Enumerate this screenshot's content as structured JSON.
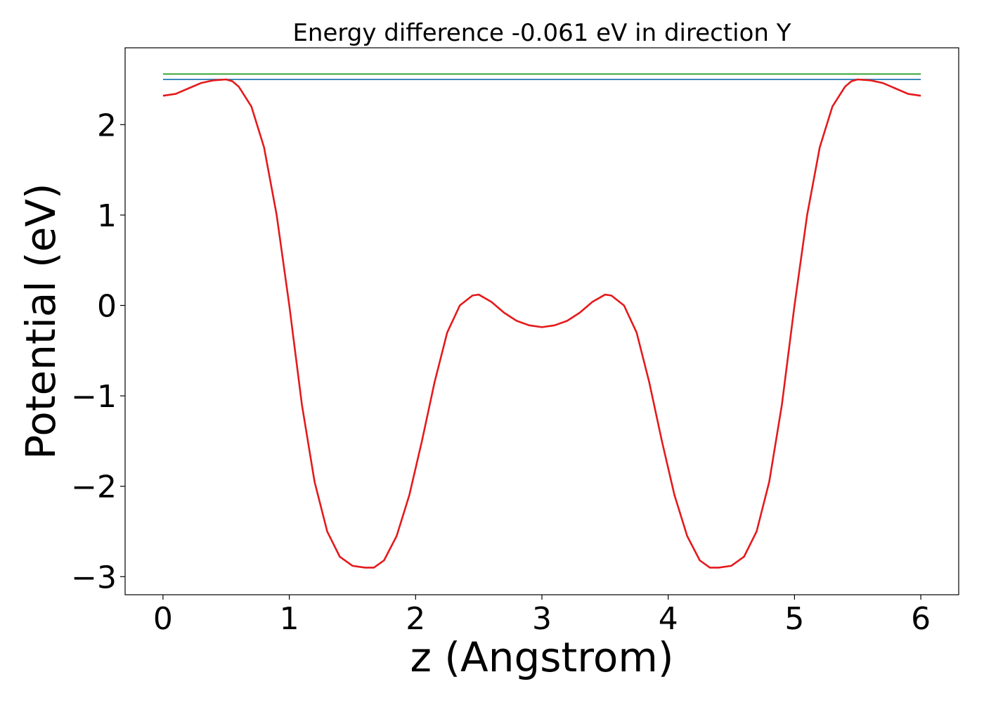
{
  "chart_data": {
    "type": "line",
    "title": "Energy difference -0.061 eV in direction Y",
    "xlabel": "z (Angstrom)",
    "ylabel": "Potential (eV)",
    "xlim": [
      -0.3,
      6.3
    ],
    "ylim": [
      -3.2,
      2.85
    ],
    "x_ticks": [
      0,
      1,
      2,
      3,
      4,
      5,
      6
    ],
    "x_tick_labels": [
      "0",
      "1",
      "2",
      "3",
      "4",
      "5",
      "6"
    ],
    "y_ticks": [
      -3,
      -2,
      -1,
      0,
      1,
      2
    ],
    "y_tick_labels": [
      "−3",
      "−2",
      "−1",
      "0",
      "1",
      "2"
    ],
    "grid": false,
    "series": [
      {
        "color": "#2ca02c",
        "x": [
          0,
          6
        ],
        "y": [
          2.56,
          2.56
        ]
      },
      {
        "color": "#1f77b4",
        "x": [
          0,
          6
        ],
        "y": [
          2.5,
          2.5
        ]
      },
      {
        "color": "#e41a1c",
        "x": [
          0,
          0.1,
          0.2,
          0.3,
          0.4,
          0.5,
          0.55,
          0.6,
          0.7,
          0.8,
          0.9,
          1.0,
          1.1,
          1.2,
          1.3,
          1.4,
          1.5,
          1.6,
          1.67,
          1.75,
          1.85,
          1.95,
          2.05,
          2.15,
          2.25,
          2.35,
          2.45,
          2.5,
          2.6,
          2.7,
          2.8,
          2.9,
          3.0,
          3.1,
          3.2,
          3.3,
          3.4,
          3.5,
          3.55,
          3.65,
          3.75,
          3.85,
          3.95,
          4.05,
          4.15,
          4.25,
          4.33,
          4.4,
          4.5,
          4.6,
          4.7,
          4.8,
          4.9,
          5.0,
          5.1,
          5.2,
          5.3,
          5.4,
          5.45,
          5.5,
          5.6,
          5.7,
          5.8,
          5.9,
          6.0
        ],
        "y": [
          2.32,
          2.34,
          2.4,
          2.46,
          2.49,
          2.5,
          2.48,
          2.42,
          2.2,
          1.75,
          1.0,
          0.0,
          -1.1,
          -1.95,
          -2.5,
          -2.78,
          -2.88,
          -2.9,
          -2.9,
          -2.82,
          -2.55,
          -2.1,
          -1.5,
          -0.85,
          -0.3,
          0.0,
          0.11,
          0.12,
          0.04,
          -0.08,
          -0.17,
          -0.22,
          -0.24,
          -0.22,
          -0.17,
          -0.08,
          0.04,
          0.12,
          0.11,
          0.0,
          -0.3,
          -0.85,
          -1.5,
          -2.1,
          -2.55,
          -2.82,
          -2.9,
          -2.9,
          -2.88,
          -2.78,
          -2.5,
          -1.95,
          -1.1,
          0.0,
          1.0,
          1.75,
          2.2,
          2.42,
          2.48,
          2.5,
          2.49,
          2.46,
          2.4,
          2.34,
          2.32
        ]
      }
    ]
  }
}
